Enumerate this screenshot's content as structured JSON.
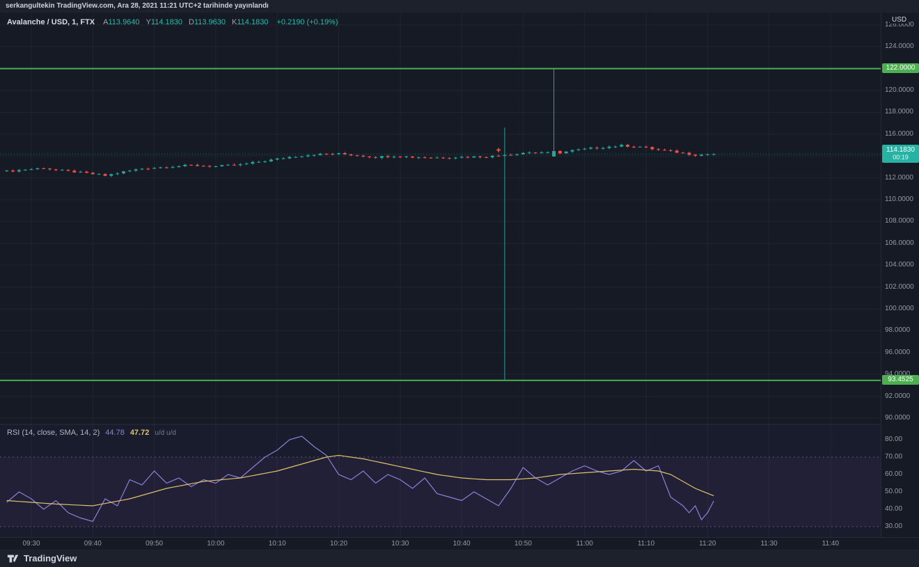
{
  "attribution": "serkangultekin TradingView.com, Ara 28, 2021 11:21 UTC+2 tarihinde yayınlandı",
  "header": {
    "symbol": "Avalanche / USD, 1, FTX",
    "open_label": "A",
    "open": "113.9640",
    "high_label": "Y",
    "high": "114.1830",
    "low_label": "D",
    "low": "113.9630",
    "close_label": "K",
    "close": "114.1830",
    "change": "+0.2190 (+0.19%)"
  },
  "price_axis": {
    "currency": "USD",
    "ticks": [
      126,
      124,
      122,
      120,
      118,
      116,
      114,
      112,
      110,
      108,
      106,
      104,
      102,
      100,
      98,
      96,
      94,
      92,
      90
    ],
    "levels": [
      {
        "label": "122.0000"
      },
      {
        "label": "93.4525"
      }
    ],
    "last_price": {
      "value": "114.1830",
      "countdown": "00:19"
    }
  },
  "time_axis": {
    "labels": [
      "09:30",
      "09:40",
      "09:50",
      "10:00",
      "10:10",
      "10:20",
      "10:30",
      "10:40",
      "10:50",
      "11:00",
      "11:10",
      "11:20",
      "11:30",
      "11:40"
    ]
  },
  "rsi_panel": {
    "title": "RSI (14, close, SMA, 14, 2)",
    "rsi_value": "44.78",
    "sma_value": "47.72",
    "suffix": "u/d  u/d",
    "ticks": [
      80,
      70,
      60,
      50,
      40,
      30
    ]
  },
  "footer": {
    "logo_text": "TradingView"
  },
  "colors": {
    "up": "#26a69a",
    "down": "#ef5350",
    "level": "#4caf50",
    "grid": "#1e2431",
    "separator": "#2a2f3d",
    "rsi": "#8b80d9",
    "sma": "#e3c26a",
    "marker": "#ff5d3b",
    "rsi_pane_bg": "rgba(126,87,194,0.05)",
    "rsi_band_bg": "rgba(126,87,194,0.08)",
    "rsi_band_line": "#8e8aa5"
  },
  "chart_data": {
    "type": "candlestick",
    "title": "Avalanche / USD, 1 minute, FTX",
    "interval_minutes": 1,
    "start_time": "09:26",
    "candle_count": 116,
    "last_candle": {
      "open": 113.964,
      "high": 114.183,
      "low": 113.963,
      "close": 114.183
    },
    "last_price": 114.183,
    "levels": [
      122.0,
      93.4525
    ],
    "price_ylim": [
      89.4,
      127.1
    ],
    "spikes": [
      {
        "t": 81,
        "high": 116.6,
        "low": 93.46,
        "open": 114.0,
        "close": 114.1
      },
      {
        "t": 89,
        "high": 122.0,
        "open": 113.95,
        "close": 114.45
      }
    ],
    "marker": {
      "t": 80,
      "price": 114.55
    },
    "price_anchors": [
      [
        0,
        112.6
      ],
      [
        3,
        112.75
      ],
      [
        6,
        112.9
      ],
      [
        8,
        112.7
      ],
      [
        11,
        112.55
      ],
      [
        14,
        112.35
      ],
      [
        16,
        112.2
      ],
      [
        19,
        112.55
      ],
      [
        22,
        112.85
      ],
      [
        26,
        113.0
      ],
      [
        30,
        113.15
      ],
      [
        34,
        113.05
      ],
      [
        38,
        113.2
      ],
      [
        42,
        113.55
      ],
      [
        46,
        113.9
      ],
      [
        50,
        114.15
      ],
      [
        54,
        114.2
      ],
      [
        57,
        114.05
      ],
      [
        60,
        113.9
      ],
      [
        63,
        114.0
      ],
      [
        66,
        113.9
      ],
      [
        70,
        113.85
      ],
      [
        74,
        113.9
      ],
      [
        78,
        113.95
      ],
      [
        81,
        114.05
      ],
      [
        84,
        114.3
      ],
      [
        87,
        114.35
      ],
      [
        89,
        114.2
      ],
      [
        92,
        114.5
      ],
      [
        96,
        114.75
      ],
      [
        100,
        114.95
      ],
      [
        103,
        114.85
      ],
      [
        106,
        114.55
      ],
      [
        109,
        114.35
      ],
      [
        112,
        114.1
      ],
      [
        115,
        114.18
      ]
    ],
    "rsi_ylim": [
      27,
      85
    ],
    "rsi_bands": [
      70,
      30
    ],
    "rsi_anchors": [
      [
        0,
        44
      ],
      [
        2,
        50
      ],
      [
        4,
        46
      ],
      [
        6,
        40
      ],
      [
        8,
        45
      ],
      [
        10,
        38
      ],
      [
        12,
        35
      ],
      [
        14,
        33
      ],
      [
        16,
        46
      ],
      [
        18,
        42
      ],
      [
        20,
        57
      ],
      [
        22,
        54
      ],
      [
        24,
        62
      ],
      [
        26,
        55
      ],
      [
        28,
        58
      ],
      [
        30,
        53
      ],
      [
        32,
        57
      ],
      [
        34,
        55
      ],
      [
        36,
        60
      ],
      [
        38,
        58
      ],
      [
        40,
        64
      ],
      [
        42,
        70
      ],
      [
        44,
        74
      ],
      [
        46,
        80
      ],
      [
        48,
        82
      ],
      [
        50,
        76
      ],
      [
        52,
        71
      ],
      [
        54,
        60
      ],
      [
        56,
        57
      ],
      [
        58,
        62
      ],
      [
        60,
        55
      ],
      [
        62,
        60
      ],
      [
        64,
        57
      ],
      [
        66,
        52
      ],
      [
        68,
        58
      ],
      [
        70,
        49
      ],
      [
        72,
        47
      ],
      [
        74,
        45
      ],
      [
        76,
        50
      ],
      [
        78,
        46
      ],
      [
        80,
        42
      ],
      [
        82,
        52
      ],
      [
        84,
        64
      ],
      [
        86,
        58
      ],
      [
        88,
        54
      ],
      [
        90,
        58
      ],
      [
        92,
        62
      ],
      [
        94,
        65
      ],
      [
        96,
        62
      ],
      [
        98,
        60
      ],
      [
        100,
        62
      ],
      [
        102,
        68
      ],
      [
        104,
        62
      ],
      [
        106,
        65
      ],
      [
        108,
        47
      ],
      [
        110,
        42
      ],
      [
        111,
        38
      ],
      [
        112,
        42
      ],
      [
        113,
        34
      ],
      [
        114,
        38
      ],
      [
        115,
        44.78
      ]
    ],
    "sma_anchors": [
      [
        0,
        45
      ],
      [
        8,
        43
      ],
      [
        14,
        42
      ],
      [
        20,
        46
      ],
      [
        26,
        52
      ],
      [
        32,
        56
      ],
      [
        38,
        58
      ],
      [
        44,
        62
      ],
      [
        48,
        66
      ],
      [
        52,
        70
      ],
      [
        54,
        71
      ],
      [
        58,
        69
      ],
      [
        62,
        66
      ],
      [
        66,
        63
      ],
      [
        70,
        60
      ],
      [
        74,
        58
      ],
      [
        78,
        57
      ],
      [
        82,
        57
      ],
      [
        86,
        58
      ],
      [
        90,
        60
      ],
      [
        94,
        61
      ],
      [
        98,
        62
      ],
      [
        102,
        63
      ],
      [
        106,
        62
      ],
      [
        108,
        60
      ],
      [
        110,
        56
      ],
      [
        112,
        52
      ],
      [
        115,
        47.72
      ]
    ]
  }
}
